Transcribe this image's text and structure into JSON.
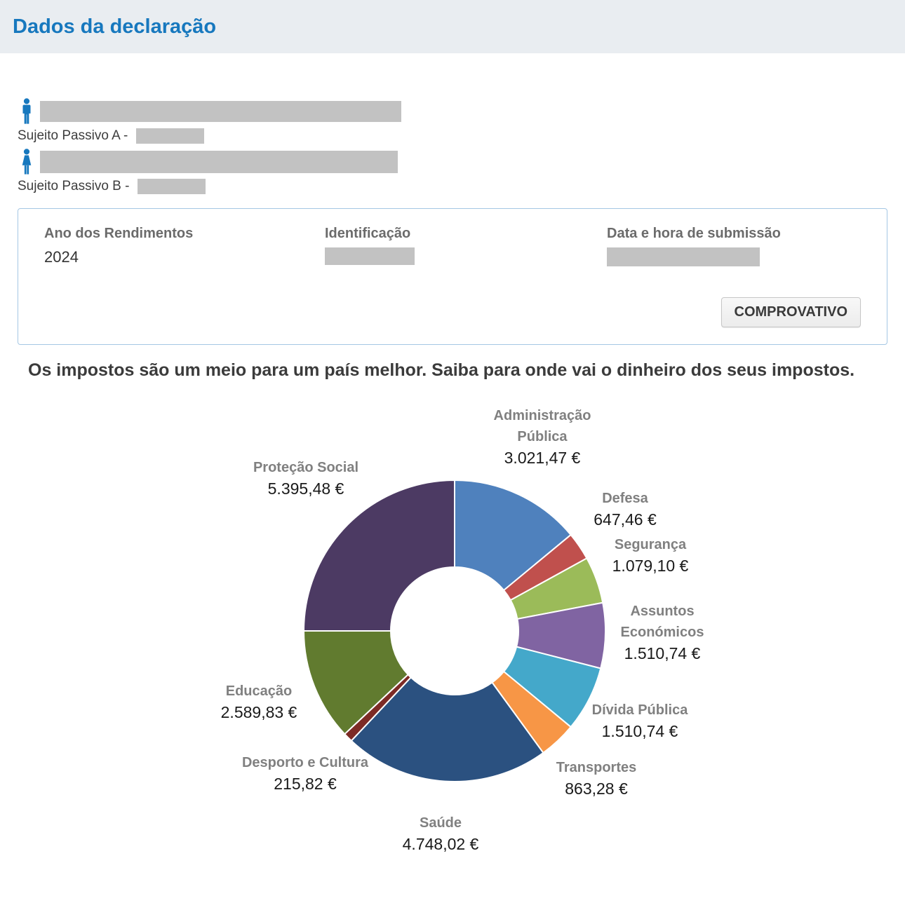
{
  "header": {
    "title": "Dados da declaração"
  },
  "taxpayers": {
    "a_label": "Sujeito Passivo A -",
    "b_label": "Sujeito Passivo B -"
  },
  "declaration_box": {
    "year_label": "Ano dos Rendimentos",
    "year_value": "2024",
    "id_label": "Identificação",
    "submission_label": "Data e hora de submissão",
    "button_label": "COMPROVATIVO"
  },
  "intro": {
    "text": "Os impostos são um meio para um país melhor. Saiba para onde vai o dinheiro dos seus impostos."
  },
  "chart_data": {
    "type": "pie",
    "subtype": "donut",
    "unit": "EUR",
    "legend_position": "around-labels",
    "slices": [
      {
        "label": "Administração Pública",
        "value_text": "3.021,47 €",
        "value": 3021.47,
        "color": "#4f81bd"
      },
      {
        "label": "Defesa",
        "value_text": "647,46 €",
        "value": 647.46,
        "color": "#c0504d"
      },
      {
        "label": "Segurança",
        "value_text": "1.079,10 €",
        "value": 1079.1,
        "color": "#9bbb59"
      },
      {
        "label": "Assuntos Económicos",
        "value_text": "1.510,74 €",
        "value": 1510.74,
        "color": "#8064a2"
      },
      {
        "label": "Dívida Pública",
        "value_text": "1.510,74 €",
        "value": 1510.74,
        "color": "#44a8ca"
      },
      {
        "label": "Transportes",
        "value_text": "863,28 €",
        "value": 863.28,
        "color": "#f79646"
      },
      {
        "label": "Saúde",
        "value_text": "4.748,02 €",
        "value": 4748.02,
        "color": "#2b5180"
      },
      {
        "label": "Desporto e Cultura",
        "value_text": "215,82 €",
        "value": 215.82,
        "color": "#7d2a25"
      },
      {
        "label": "Educação",
        "value_text": "2.589,83 €",
        "value": 2589.83,
        "color": "#617b2f"
      },
      {
        "label": "Proteção Social",
        "value_text": "5.395,48 €",
        "value": 5395.48,
        "color": "#4c3a63"
      }
    ]
  }
}
